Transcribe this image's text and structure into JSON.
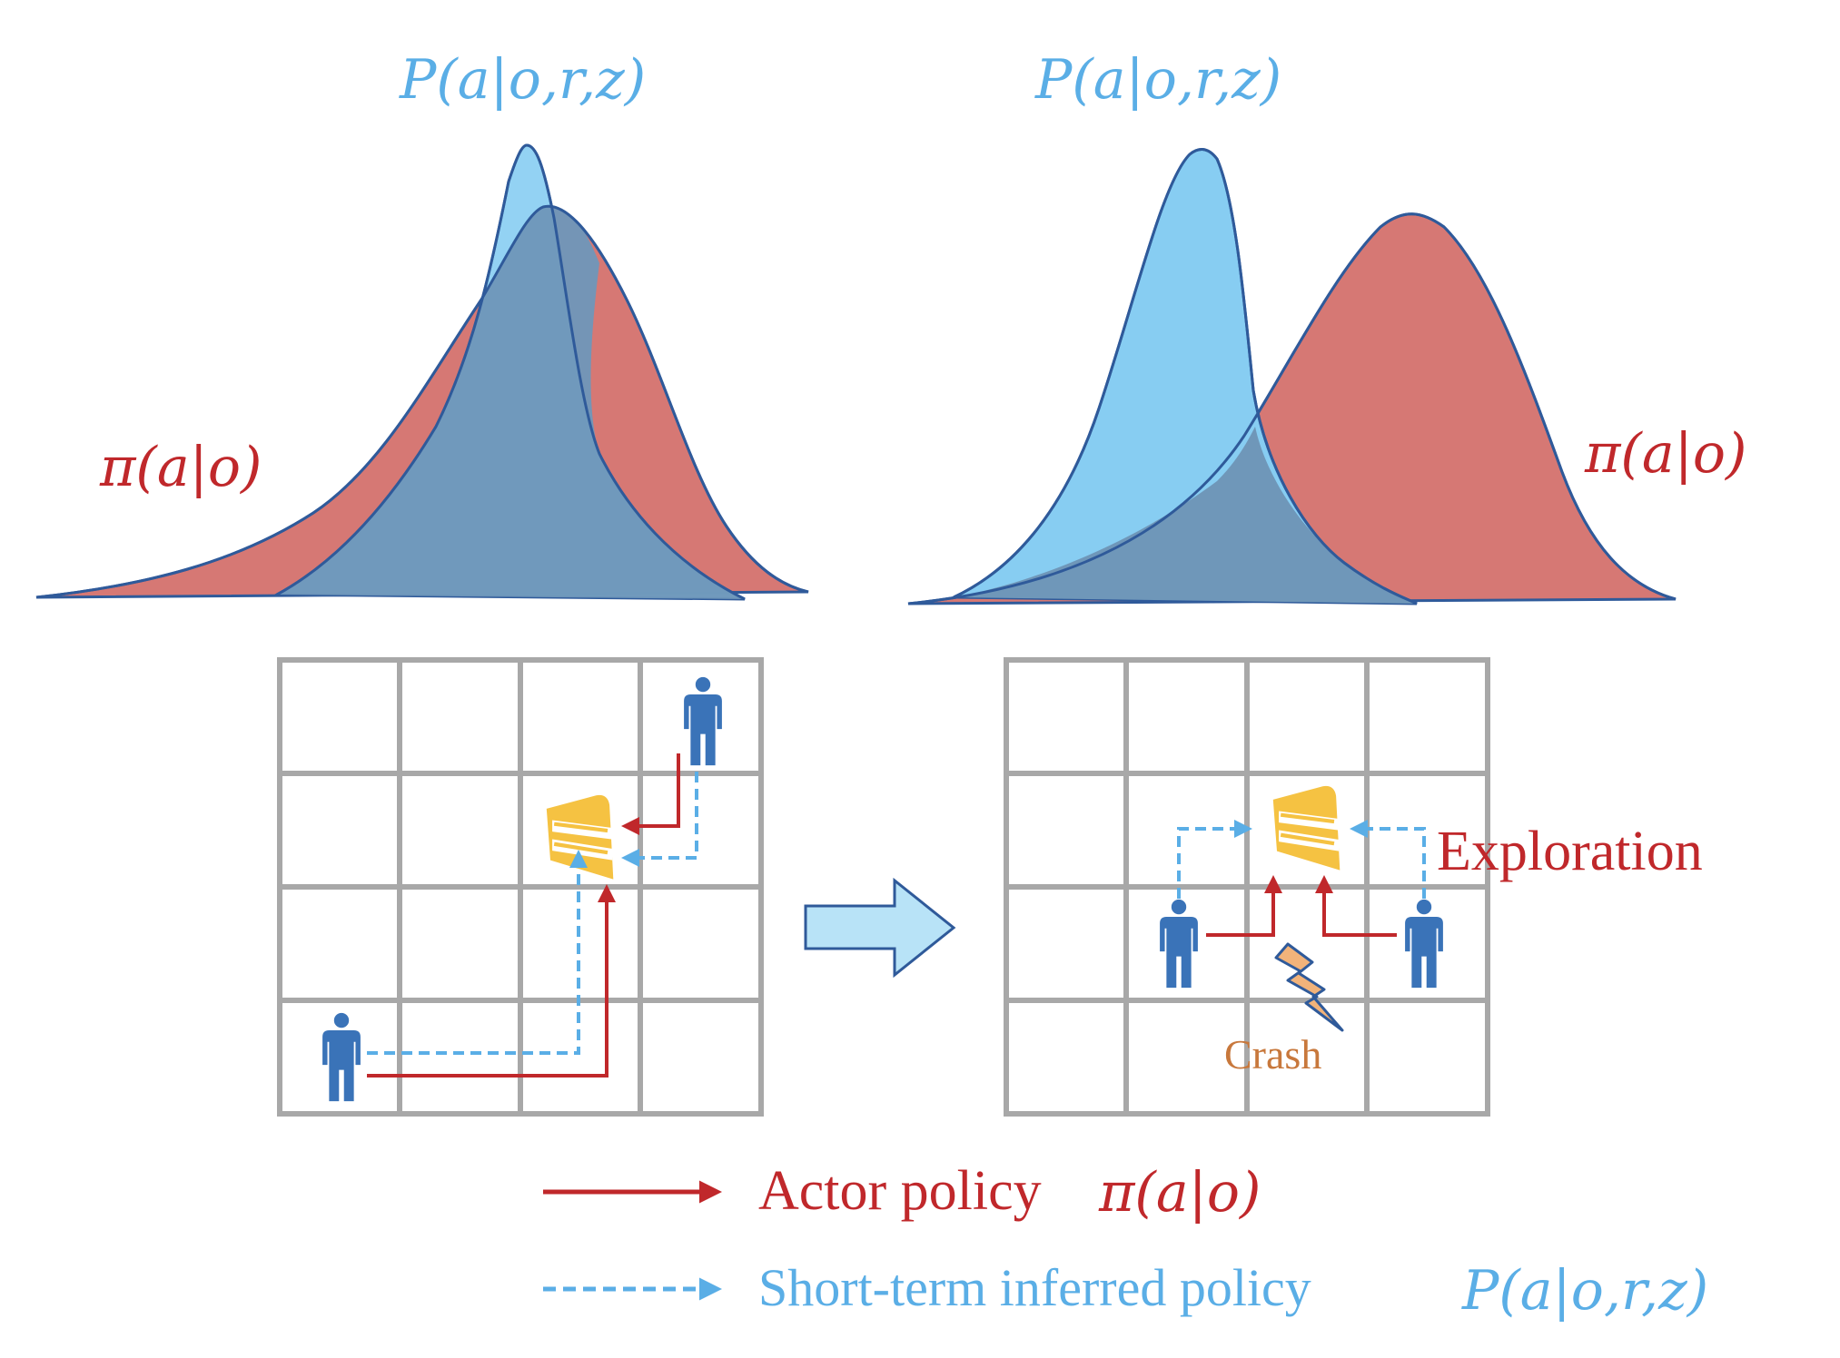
{
  "labels": {
    "top_left_blue": "P(a|o,r,z)",
    "top_left_red": "π(a|o)",
    "top_right_blue": "P(a|o,r,z)",
    "top_right_red": "π(a|o)",
    "exploration": "Exploration",
    "crash": "Crash"
  },
  "legend": {
    "actor_text": "Actor policy",
    "actor_math": "π(a|o)",
    "inferred_text": "Short-term inferred policy",
    "inferred_math": "P(a|o,r,z)"
  },
  "colors": {
    "blue_fill": "#87cdf2",
    "red_fill": "#d67874",
    "overlap_fill": "#6f97b9",
    "outline": "#2f5a9a",
    "red_arrow": "#c0282b",
    "blue_arrow": "#5aaee6",
    "cake": "#f5c242",
    "person": "#3a73b8",
    "bolt": "#f2b37a"
  }
}
